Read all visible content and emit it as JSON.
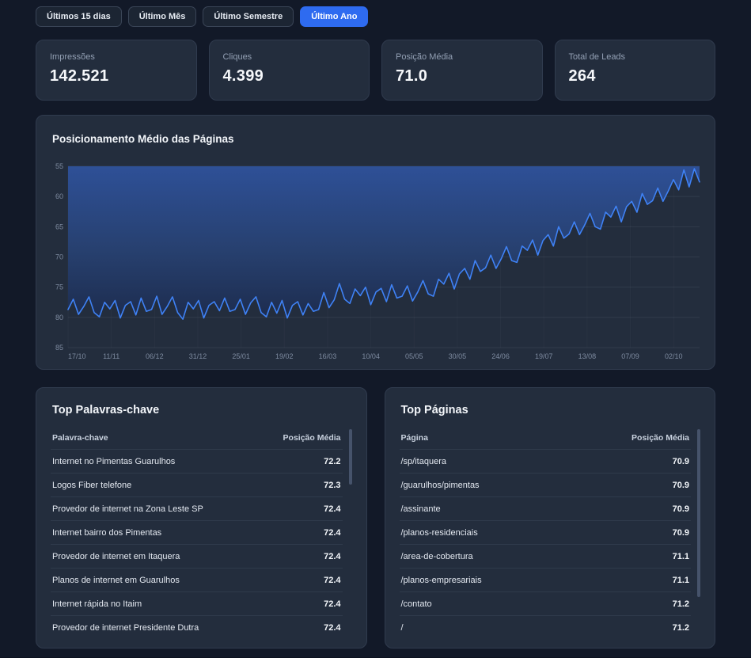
{
  "toolbar": {
    "buttons": [
      {
        "label": "Últimos 15 dias",
        "active": false
      },
      {
        "label": "Último Mês",
        "active": false
      },
      {
        "label": "Último Semestre",
        "active": false
      },
      {
        "label": "Último Ano",
        "active": true
      }
    ]
  },
  "stats": [
    {
      "label": "Impressões",
      "value": "142.521"
    },
    {
      "label": "Cliques",
      "value": "4.399"
    },
    {
      "label": "Posição Média",
      "value": "71.0"
    },
    {
      "label": "Total de Leads",
      "value": "264"
    }
  ],
  "chart_data": {
    "type": "line",
    "title": "Posicionamento Médio das Páginas",
    "xlabel": "",
    "ylabel": "",
    "y_ticks": [
      55,
      60,
      65,
      70,
      75,
      80,
      85
    ],
    "ylim": [
      55,
      85
    ],
    "y_inverted": true,
    "grid": true,
    "x_labels": [
      "17/10",
      "11/11",
      "06/12",
      "31/12",
      "25/01",
      "19/02",
      "16/03",
      "10/04",
      "05/05",
      "30/05",
      "24/06",
      "19/07",
      "13/08",
      "07/09",
      "02/10"
    ],
    "x_label_interval_days": 25,
    "x_domain_days": 365,
    "colors": {
      "line": "#3f82f6",
      "fill_top": "#2e5097",
      "fill_mid": "#27406f",
      "fill_bottom": "#1d2c4e"
    },
    "series": [
      {
        "name": "Posição Média",
        "values": [
          78.7,
          77.0,
          79.5,
          78.2,
          76.6,
          79.2,
          79.9,
          77.5,
          78.6,
          77.2,
          80.1,
          78.0,
          77.4,
          79.6,
          76.8,
          79.0,
          78.7,
          76.5,
          79.5,
          78.2,
          76.6,
          79.2,
          80.3,
          77.5,
          78.6,
          77.2,
          80.1,
          78.0,
          77.4,
          78.9,
          76.8,
          79.0,
          78.7,
          77.0,
          79.5,
          77.6,
          76.6,
          79.2,
          79.9,
          77.5,
          79.3,
          77.2,
          80.1,
          78.0,
          77.4,
          79.6,
          77.7,
          79.0,
          78.7,
          75.9,
          78.4,
          77.1,
          74.4,
          77.0,
          77.7,
          75.3,
          76.4,
          75.0,
          77.9,
          75.8,
          75.2,
          77.4,
          74.6,
          76.8,
          76.5,
          74.8,
          77.3,
          75.8,
          73.9,
          76.1,
          76.5,
          73.7,
          74.5,
          72.7,
          75.3,
          72.8,
          71.9,
          73.7,
          70.6,
          72.4,
          71.8,
          69.7,
          71.9,
          70.3,
          68.3,
          70.6,
          70.9,
          68.2,
          68.9,
          67.2,
          69.7,
          67.3,
          66.3,
          68.2,
          65.0,
          66.9,
          66.2,
          64.2,
          66.3,
          64.7,
          62.8,
          65.0,
          65.4,
          62.6,
          63.4,
          61.6,
          64.2,
          61.7,
          60.8,
          62.6,
          59.5,
          61.3,
          60.7,
          58.6,
          60.8,
          59.1,
          57.2,
          58.9,
          55.6,
          58.4,
          55.4,
          57.6
        ]
      }
    ]
  },
  "tables": {
    "keywords": {
      "title": "Top Palavras-chave",
      "columns": [
        "Palavra-chave",
        "Posição Média"
      ],
      "rows": [
        [
          "Internet no Pimentas Guarulhos",
          "72.2"
        ],
        [
          "Logos Fiber telefone",
          "72.3"
        ],
        [
          "Provedor de internet na Zona Leste SP",
          "72.4"
        ],
        [
          "Internet bairro dos Pimentas",
          "72.4"
        ],
        [
          "Provedor de internet em Itaquera",
          "72.4"
        ],
        [
          "Planos de internet em Guarulhos",
          "72.4"
        ],
        [
          "Internet rápida no Itaim",
          "72.4"
        ],
        [
          "Provedor de internet Presidente Dutra",
          "72.4"
        ]
      ]
    },
    "pages": {
      "title": "Top Páginas",
      "columns": [
        "Página",
        "Posição Média"
      ],
      "rows": [
        [
          "/sp/itaquera",
          "70.9"
        ],
        [
          "/guarulhos/pimentas",
          "70.9"
        ],
        [
          "/assinante",
          "70.9"
        ],
        [
          "/planos-residenciais",
          "70.9"
        ],
        [
          "/area-de-cobertura",
          "71.1"
        ],
        [
          "/planos-empresariais",
          "71.1"
        ],
        [
          "/contato",
          "71.2"
        ],
        [
          "/",
          "71.2"
        ]
      ]
    }
  }
}
